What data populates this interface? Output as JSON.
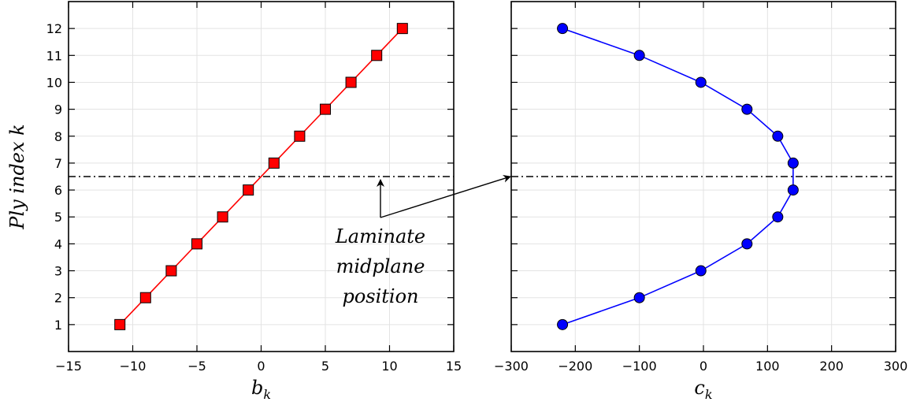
{
  "chart_data": [
    {
      "type": "line",
      "ylabel": "Ply index k",
      "xlabel": {
        "base": "b",
        "sub": "k"
      },
      "xlim": [
        -15,
        15
      ],
      "ylim": [
        0,
        13
      ],
      "xticks": [
        -15,
        -10,
        -5,
        0,
        5,
        10,
        15
      ],
      "xtick_labels": [
        "−15",
        "−10",
        "−5",
        "0",
        "5",
        "10",
        "15"
      ],
      "yticks": [
        1,
        2,
        3,
        4,
        5,
        6,
        7,
        8,
        9,
        10,
        11,
        12
      ],
      "ytick_labels": [
        "1",
        "2",
        "3",
        "4",
        "5",
        "6",
        "7",
        "8",
        "9",
        "10",
        "11",
        "12"
      ],
      "grid": true,
      "series": [
        {
          "color": "#ff0000",
          "marker": "square",
          "x": [
            -11,
            -9,
            -7,
            -5,
            -3,
            -1,
            1,
            3,
            5,
            7,
            9,
            11
          ],
          "y": [
            1,
            2,
            3,
            4,
            5,
            6,
            7,
            8,
            9,
            10,
            11,
            12
          ]
        }
      ],
      "hline": {
        "y": 6.5,
        "style": "dash-dot"
      }
    },
    {
      "type": "line",
      "xlabel": {
        "base": "c",
        "sub": "k"
      },
      "xlim": [
        -300,
        300
      ],
      "ylim": [
        0,
        13
      ],
      "xticks": [
        -300,
        -200,
        -100,
        0,
        100,
        200,
        300
      ],
      "xtick_labels": [
        "−300",
        "−200",
        "−100",
        "0",
        "100",
        "200",
        "300"
      ],
      "yticks": [
        1,
        2,
        3,
        4,
        5,
        6,
        7,
        8,
        9,
        10,
        11,
        12
      ],
      "grid": true,
      "series": [
        {
          "color": "#0000ff",
          "marker": "circle",
          "x": [
            -220,
            -100,
            -4,
            68,
            116,
            140,
            140,
            116,
            68,
            -4,
            -100,
            -220
          ],
          "y": [
            1,
            2,
            3,
            4,
            5,
            6,
            7,
            8,
            9,
            10,
            11,
            12
          ]
        }
      ],
      "hline": {
        "y": 6.5,
        "style": "dash-dot"
      }
    }
  ],
  "annotation": {
    "lines": [
      "Laminate",
      "midplane",
      "position"
    ]
  }
}
